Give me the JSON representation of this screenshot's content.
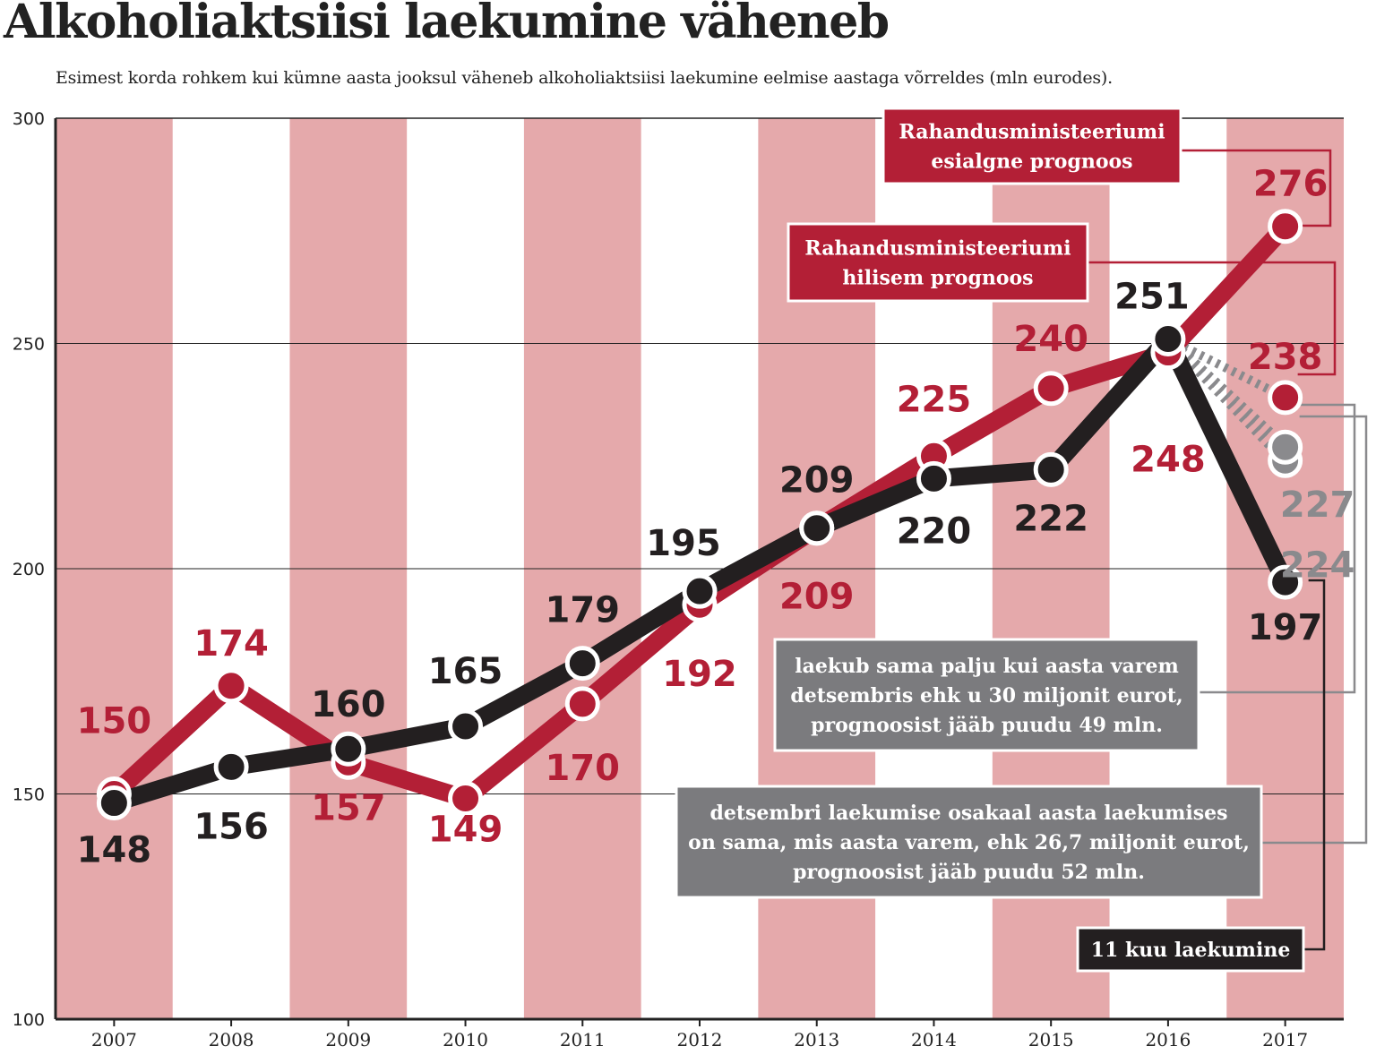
{
  "title": "Alkoholiaktsiisi laekumine väheneb",
  "subtitle": "Esimest korda rohkem kui kümne aasta jooksul väheneb alkoholiaktsiisi laekumine eelmise aastaga võrreldes (mln eurodes).",
  "colors": {
    "band": "#e5a9ab",
    "red": "#b31f36",
    "black": "#231f20",
    "gray": "#8a8a8d",
    "annotation_gray": "#7b7b7e"
  },
  "chart_data": {
    "type": "line",
    "x": [
      "2007",
      "2008",
      "2009",
      "2010",
      "2011",
      "2012",
      "2013",
      "2014",
      "2015",
      "2016",
      "2017"
    ],
    "ylim": [
      100,
      300
    ],
    "yticks": [
      100,
      150,
      200,
      250,
      300
    ],
    "grid": true,
    "series": [
      {
        "name": "Rahandusministeeriumi esialgne prognoos",
        "color": "#b31f36",
        "values": [
          150,
          174,
          157,
          149,
          170,
          192,
          209,
          225,
          240,
          248,
          276
        ]
      },
      {
        "name": "11 kuu laekumine",
        "color": "#231f20",
        "values": [
          148,
          156,
          160,
          165,
          179,
          195,
          209,
          220,
          222,
          251,
          197
        ]
      }
    ],
    "forecast_points": [
      {
        "name": "Rahandusministeeriumi hilisem prognoos",
        "x": "2017",
        "value": 238,
        "label": "238",
        "color": "#b31f36"
      },
      {
        "name": "laekub sama palju kui aasta varem detsembris ehk u 30 miljonit eurot, prognoosist jääb puudu 49 mln.",
        "x": "2017",
        "value": 227,
        "label": "227",
        "color": "#8a8a8d"
      },
      {
        "name": "detsembri laekumise osakaal aasta laekumises on sama, mis aasta varem, ehk 26,7 miljonit eurot, prognoosist jääb puudu 52 mln.",
        "x": "2017",
        "value": 224,
        "label": "224",
        "color": "#8a8a8d"
      }
    ],
    "labels_red": [
      "150",
      "174",
      "157",
      "149",
      "170",
      "192",
      "209",
      "225",
      "240",
      "248",
      "276"
    ],
    "labels_black": [
      "148",
      "156",
      "160",
      "165",
      "179",
      "195",
      "209",
      "220",
      "222",
      "251",
      "197"
    ],
    "annotations": {
      "box1": [
        "Rahandusministeeriumi",
        "esialgne prognoos"
      ],
      "box2": [
        "Rahandusministeeriumi",
        "hilisem prognoos"
      ],
      "box3": [
        "laekub sama palju kui aasta varem",
        "detsembris ehk u 30 miljonit eurot,",
        "prognoosist jääb puudu 49 mln."
      ],
      "box4": [
        "detsembri laekumise osakaal aasta laekumises",
        "on sama, mis aasta varem, ehk 26,7 miljonit eurot,",
        "prognoosist jääb puudu 52 mln."
      ],
      "box5": [
        "11 kuu laekumine"
      ]
    }
  }
}
